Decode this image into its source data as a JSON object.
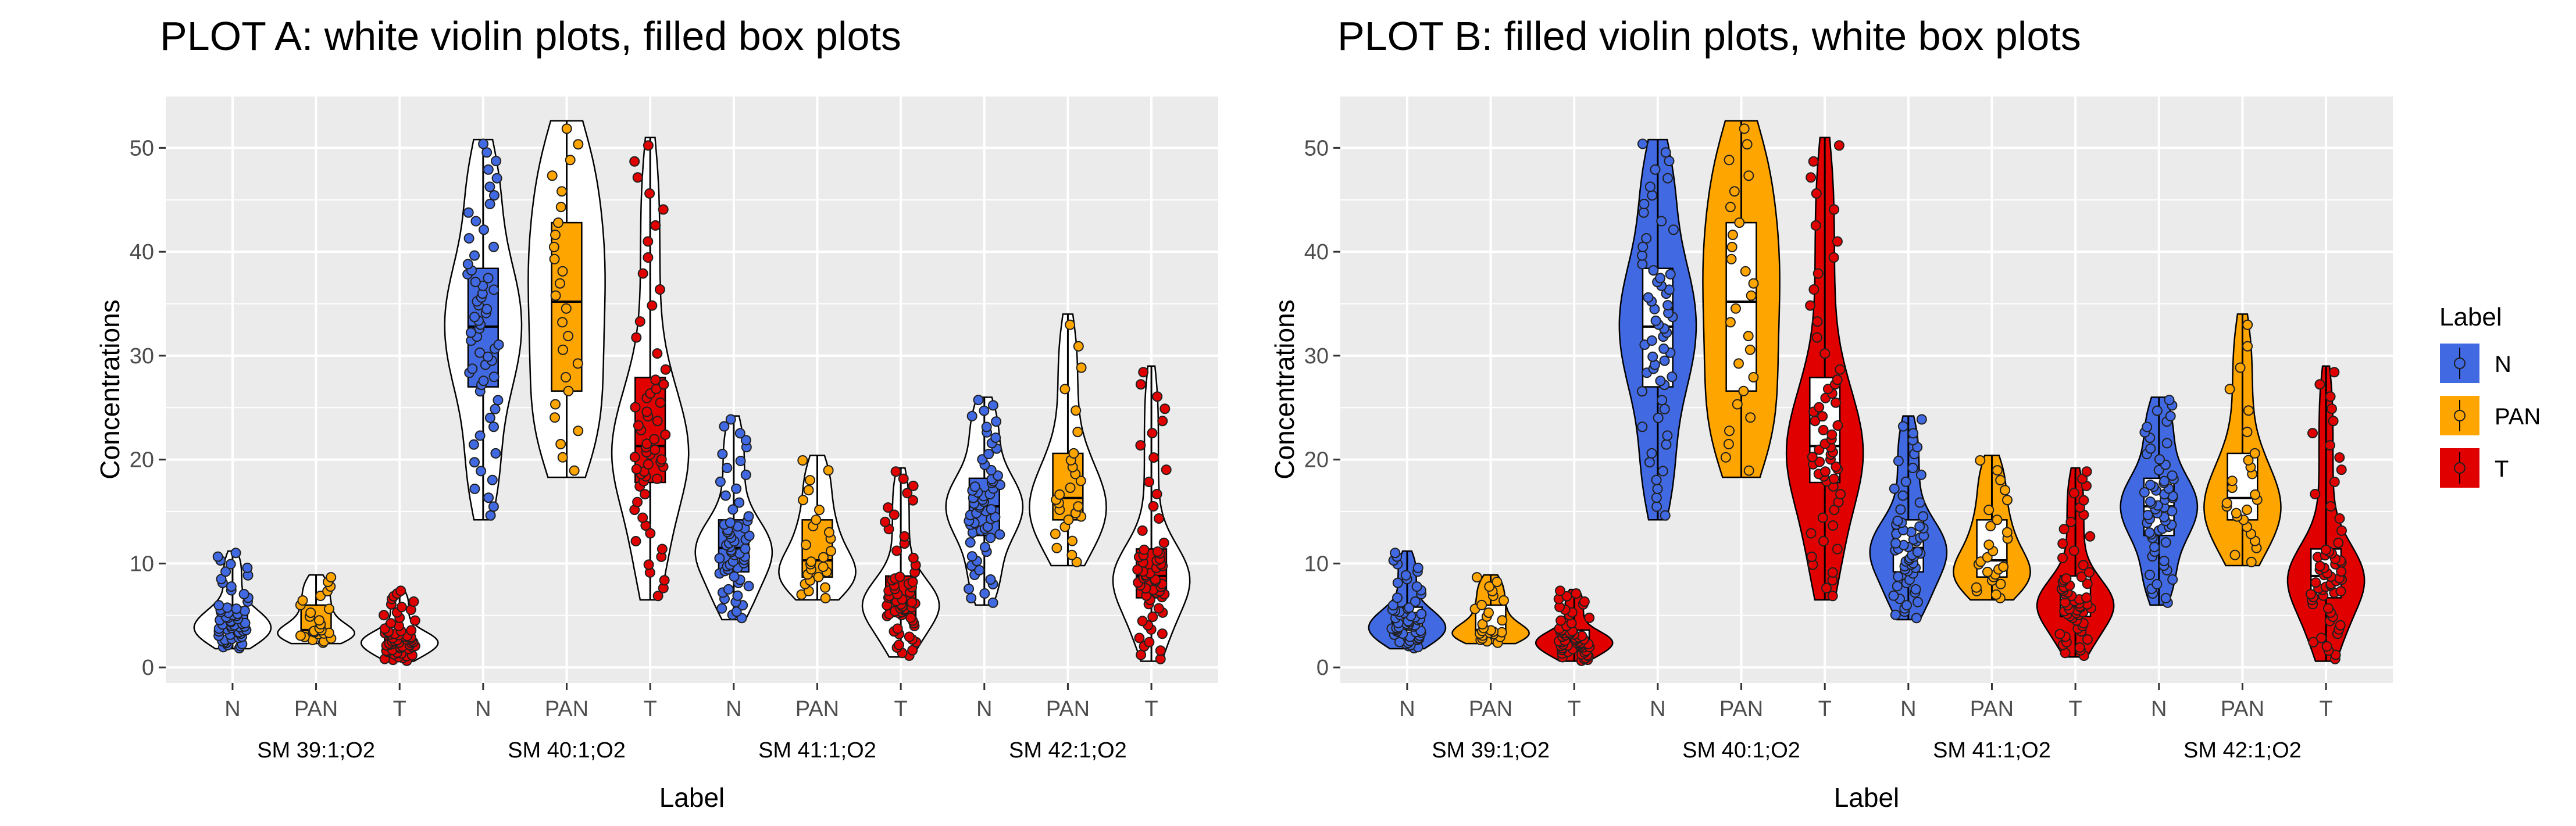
{
  "colors": {
    "panel_bg": "#EBEBEB",
    "grid": "#FFFFFF",
    "N": "#4169E1",
    "PAN": "#FFA500",
    "T": "#E00000",
    "outline": "#000000"
  },
  "chart_data": [
    {
      "id": "A",
      "type": "violin",
      "title": "PLOT A: white violin plots, filled box plots",
      "style": "white violins, filled boxes",
      "xlabel": "Label",
      "ylabel": "Concentrations",
      "ylim": [
        -1.5,
        55
      ],
      "yticks": [
        0,
        10,
        20,
        30,
        40,
        50
      ],
      "x_tick_labels": [
        "N",
        "PAN",
        "T"
      ],
      "groups": [
        "SM 39:1;O2",
        "SM 40:1;O2",
        "SM 41:1;O2",
        "SM 42:1;O2"
      ],
      "grid": true
    },
    {
      "id": "B",
      "type": "violin",
      "title": "PLOT B: filled violin plots, white box plots",
      "style": "filled violins, white boxes",
      "xlabel": "Label",
      "ylabel": "Concentrations",
      "ylim": [
        -1.5,
        55
      ],
      "yticks": [
        0,
        10,
        20,
        30,
        40,
        50
      ],
      "x_tick_labels": [
        "N",
        "PAN",
        "T"
      ],
      "groups": [
        "SM 39:1;O2",
        "SM 40:1;O2",
        "SM 41:1;O2",
        "SM 42:1;O2"
      ],
      "grid": true
    }
  ],
  "series_stats": [
    {
      "group": "SM 39:1;O2",
      "label": "N",
      "min": 1.8,
      "q1": 3.3,
      "median": 4.3,
      "q3": 5.8,
      "max": 11.2,
      "n": 60
    },
    {
      "group": "SM 39:1;O2",
      "label": "PAN",
      "min": 2.3,
      "q1": 3.2,
      "median": 3.6,
      "q3": 6.0,
      "max": 8.9,
      "n": 26
    },
    {
      "group": "SM 39:1;O2",
      "label": "T",
      "min": 0.6,
      "q1": 1.9,
      "median": 2.6,
      "q3": 3.6,
      "max": 7.5,
      "n": 60
    },
    {
      "group": "SM 40:1;O2",
      "label": "N",
      "min": 14.2,
      "q1": 27.0,
      "median": 32.8,
      "q3": 38.4,
      "max": 50.8,
      "n": 60
    },
    {
      "group": "SM 40:1;O2",
      "label": "PAN",
      "min": 18.3,
      "q1": 26.6,
      "median": 35.2,
      "q3": 42.8,
      "max": 52.6,
      "n": 26
    },
    {
      "group": "SM 40:1;O2",
      "label": "T",
      "min": 6.5,
      "q1": 17.8,
      "median": 21.3,
      "q3": 27.9,
      "max": 51.0,
      "n": 60
    },
    {
      "group": "SM 41:1;O2",
      "label": "N",
      "min": 4.6,
      "q1": 9.2,
      "median": 11.5,
      "q3": 14.2,
      "max": 24.2,
      "n": 60
    },
    {
      "group": "SM 41:1;O2",
      "label": "PAN",
      "min": 6.5,
      "q1": 8.7,
      "median": 10.3,
      "q3": 14.2,
      "max": 20.4,
      "n": 26
    },
    {
      "group": "SM 41:1;O2",
      "label": "T",
      "min": 1.0,
      "q1": 4.9,
      "median": 6.3,
      "q3": 8.8,
      "max": 19.2,
      "n": 60
    },
    {
      "group": "SM 42:1;O2",
      "label": "N",
      "min": 6.0,
      "q1": 12.7,
      "median": 15.5,
      "q3": 18.2,
      "max": 26.0,
      "n": 60
    },
    {
      "group": "SM 42:1;O2",
      "label": "PAN",
      "min": 9.8,
      "q1": 14.2,
      "median": 16.3,
      "q3": 20.6,
      "max": 34.0,
      "n": 26
    },
    {
      "group": "SM 42:1;O2",
      "label": "T",
      "min": 0.6,
      "q1": 6.7,
      "median": 8.8,
      "q3": 11.4,
      "max": 29.0,
      "n": 60
    }
  ],
  "legend": {
    "title": "Label",
    "items": [
      {
        "label": "N",
        "color_key": "N"
      },
      {
        "label": "PAN",
        "color_key": "PAN"
      },
      {
        "label": "T",
        "color_key": "T"
      }
    ]
  }
}
